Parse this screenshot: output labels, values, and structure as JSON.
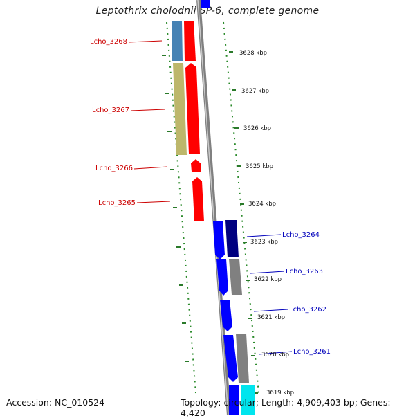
{
  "title": "Leptothrix cholodnii SP-6, complete genome",
  "footer": {
    "accession": "Accession: NC_010524",
    "topology": "Topology: circular; Length: 4,909,403 bp; Genes: 4,420"
  },
  "colors": {
    "left_gene_label": "#cc0000",
    "right_gene_label": "#0000bb",
    "forward_strand_gene": "#ff0000",
    "reverse_strand_gene": "#0000ff",
    "kbp_tick": "#2a8a2a",
    "backbone": "#808080"
  },
  "kbp_ticks": [
    {
      "label": "3628 kbp"
    },
    {
      "label": "3627 kbp"
    },
    {
      "label": "3626 kbp"
    },
    {
      "label": "3625 kbp"
    },
    {
      "label": "3624 kbp"
    },
    {
      "label": "3623 kbp"
    },
    {
      "label": "3622 kbp"
    },
    {
      "label": "3621 kbp"
    },
    {
      "label": "3620 kbp"
    },
    {
      "label": "3619 kbp"
    }
  ],
  "gene_labels": {
    "left": [
      "Lcho_3268",
      "Lcho_3267",
      "Lcho_3266",
      "Lcho_3265"
    ],
    "right": [
      "Lcho_3264",
      "Lcho_3263",
      "Lcho_3262",
      "Lcho_3261"
    ]
  }
}
